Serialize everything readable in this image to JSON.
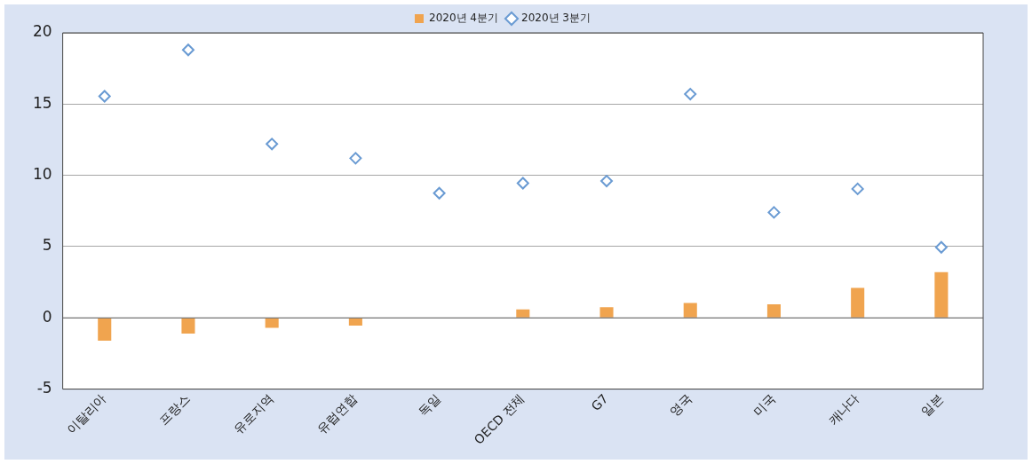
{
  "chart_data": {
    "type": "bar",
    "categories": [
      "이탈리아",
      "프랑스",
      "유로지역",
      "유럽연합",
      "독일",
      "OECD 전체",
      "G7",
      "영국",
      "미국",
      "캐나다",
      "일본"
    ],
    "series": [
      {
        "name": "2020년 4분기",
        "color": "#f0a44f",
        "values": [
          -1.6,
          -1.1,
          -0.7,
          -0.55,
          0,
          0.6,
          0.75,
          1.05,
          0.95,
          2.1,
          3.2
        ]
      },
      {
        "name": "2020년 3분기",
        "type": "scatter",
        "marker": "diamond",
        "color": "#6a9bd3",
        "values": [
          15.55,
          18.8,
          12.2,
          11.2,
          8.75,
          9.45,
          9.6,
          15.7,
          7.4,
          9.05,
          4.95
        ]
      }
    ],
    "ylim": [
      -5,
      20
    ],
    "yticks": [
      -5,
      0,
      5,
      10,
      15,
      20
    ],
    "grid": "y",
    "legend": "top"
  }
}
